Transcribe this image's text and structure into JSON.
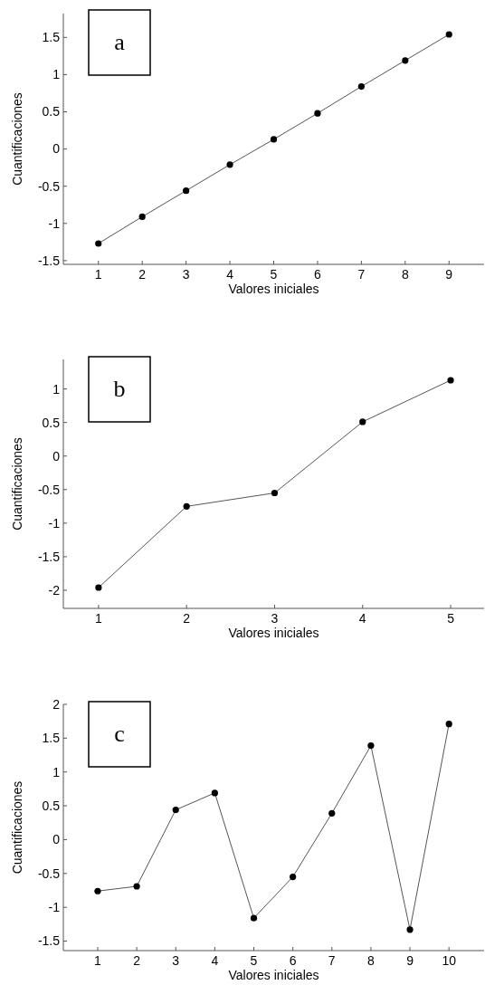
{
  "chart_data": [
    {
      "type": "line",
      "annotations": [
        "a"
      ],
      "xlabel": "Valores iniciales",
      "ylabel": "Cuantificaciones",
      "x": [
        1,
        2,
        3,
        4,
        5,
        6,
        7,
        8,
        9
      ],
      "xlim": [
        0.2,
        9.8
      ],
      "xticks": [
        1,
        2,
        3,
        4,
        5,
        6,
        7,
        8,
        9
      ],
      "ylim": [
        -1.55,
        1.82
      ],
      "yticks": [
        -1.5,
        -1,
        -0.5,
        0,
        0.5,
        1,
        1.5
      ],
      "marker": "circle",
      "grid": false,
      "series": [
        {
          "color": "#000000",
          "values": [
            -1.27,
            -0.91,
            -0.56,
            -0.21,
            0.13,
            0.48,
            0.84,
            1.19,
            1.54
          ]
        }
      ]
    },
    {
      "type": "line",
      "annotations": [
        "b"
      ],
      "xlabel": "Valores iniciales",
      "ylabel": "Cuantificaciones",
      "x": [
        1,
        2,
        3,
        4,
        5
      ],
      "xlim": [
        0.6,
        5.38
      ],
      "xticks": [
        1,
        2,
        3,
        4,
        5
      ],
      "ylim": [
        -2.27,
        1.44
      ],
      "yticks": [
        -2,
        -1.5,
        -1,
        -0.5,
        0,
        0.5,
        1
      ],
      "marker": "circle",
      "grid": false,
      "series": [
        {
          "color": "#000000",
          "values": [
            -1.96,
            -0.75,
            -0.55,
            0.51,
            1.13
          ]
        }
      ]
    },
    {
      "type": "line",
      "annotations": [
        "c"
      ],
      "xlabel": "Valores iniciales",
      "ylabel": "Cuantificaciones",
      "x": [
        1,
        2,
        3,
        4,
        5,
        6,
        7,
        8,
        9,
        10
      ],
      "xlim": [
        0.12,
        10.9
      ],
      "xticks": [
        1,
        2,
        3,
        4,
        5,
        6,
        7,
        8,
        9,
        10
      ],
      "ylim": [
        -1.64,
        2
      ],
      "yticks": [
        -1.5,
        -1,
        -0.5,
        0,
        0.5,
        1,
        1.5,
        2
      ],
      "marker": "circle",
      "grid": false,
      "series": [
        {
          "color": "#000000",
          "values": [
            -0.76,
            -0.69,
            0.44,
            0.69,
            -1.16,
            -0.55,
            0.39,
            1.39,
            -1.33,
            1.71
          ]
        }
      ]
    }
  ]
}
